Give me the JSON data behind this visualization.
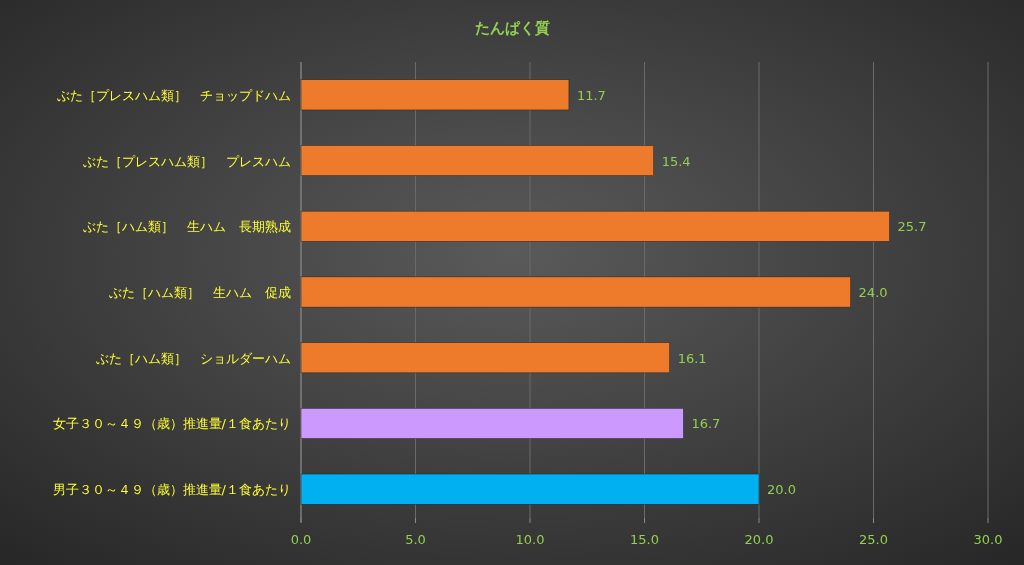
{
  "chart_data": {
    "type": "bar",
    "orientation": "horizontal",
    "title": "たんぱく質",
    "categories": [
      "ぶた［プレスハム類］　チョップドハム",
      "ぶた［プレスハム類］　プレスハム",
      "ぶた［ハム類］　生ハム　長期熟成",
      "ぶた［ハム類］　生ハム　促成",
      "ぶた［ハム類］　ショルダーハム",
      "女子３０～４９（歳）推進量/１食あたり",
      "男子３０～４９（歳）推進量/１食あたり"
    ],
    "values": [
      11.7,
      15.4,
      25.7,
      24.0,
      16.1,
      16.7,
      20.0
    ],
    "value_labels": [
      "11.7",
      "15.4",
      "25.7",
      "24.0",
      "16.1",
      "16.7",
      "20.0"
    ],
    "colors": [
      "#ee7a2c",
      "#ee7a2c",
      "#ee7a2c",
      "#ee7a2c",
      "#ee7a2c",
      "#cc99ff",
      "#00b0f0"
    ],
    "xlim": [
      0,
      30
    ],
    "xticks": [
      {
        "value": 0,
        "label": "0.0"
      },
      {
        "value": 5,
        "label": "5.0"
      },
      {
        "value": 10,
        "label": "10.0"
      },
      {
        "value": 15,
        "label": "15.0"
      },
      {
        "value": 20,
        "label": "20.0"
      },
      {
        "value": 25,
        "label": "25.0"
      },
      {
        "value": 30,
        "label": "30.0"
      }
    ],
    "grid": "x"
  }
}
